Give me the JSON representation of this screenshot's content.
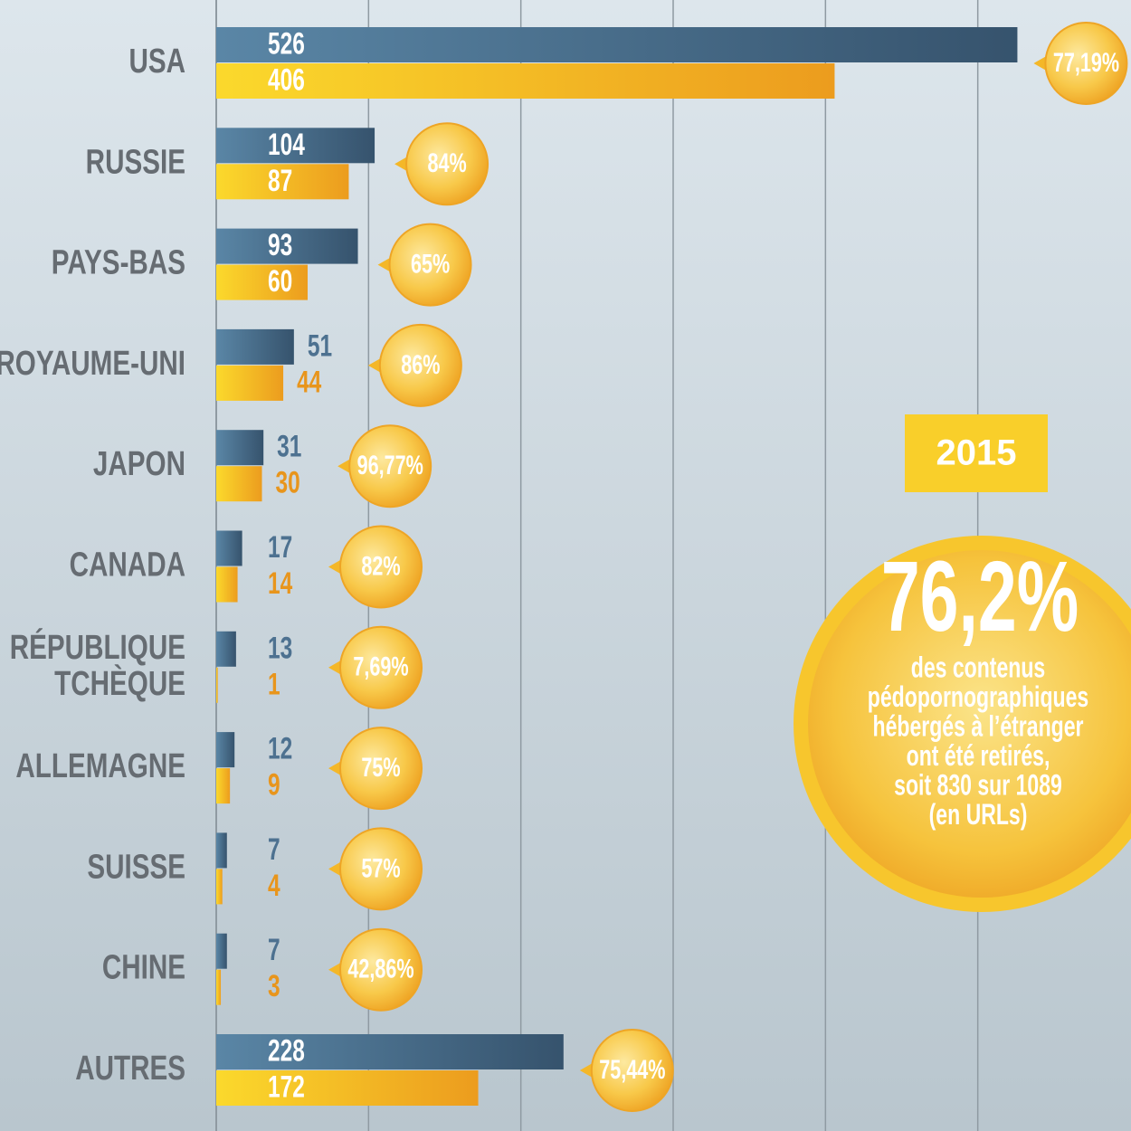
{
  "chart_data": {
    "type": "bar",
    "orientation": "horizontal",
    "categories": [
      "USA",
      "RUSSIE",
      "PAYS-BAS",
      "ROYAUME-UNI",
      "JAPON",
      "CANADA",
      "RÉPUBLIQUE TCHÈQUE",
      "ALLEMAGNE",
      "SUISSE",
      "CHINE",
      "AUTRES"
    ],
    "series": [
      {
        "color": "#3f6482",
        "values": [
          526,
          104,
          93,
          51,
          31,
          17,
          13,
          12,
          7,
          7,
          228
        ]
      },
      {
        "color": "#f3b321",
        "values": [
          406,
          87,
          60,
          44,
          30,
          14,
          1,
          9,
          4,
          3,
          172
        ]
      }
    ],
    "rates": {
      "values": [
        77.19,
        84,
        65,
        86,
        96.77,
        82,
        7.69,
        75,
        57,
        42.86,
        75.44
      ],
      "value_labels": [
        "77,19%",
        "84%",
        "65%",
        "86%",
        "96,77%",
        "82%",
        "7,69%",
        "75%",
        "57%",
        "42,86%",
        "75,44%"
      ]
    },
    "xlim": [
      0,
      600
    ],
    "xticks": [
      0,
      100,
      200,
      300,
      400,
      500
    ],
    "grid": true,
    "annotations": {
      "year": "2015",
      "headline": {
        "value": 76.2,
        "label": "76,2%"
      },
      "lines": [
        "des contenus",
        "pédopornographiques",
        "hébergés à l’étranger",
        "ont été retirés,",
        "soit 830 sur 1089",
        "(en URLs)"
      ]
    }
  }
}
